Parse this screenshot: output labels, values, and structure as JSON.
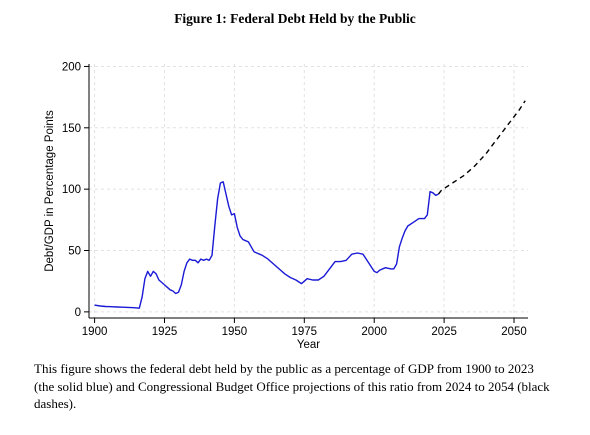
{
  "figure": {
    "title": "Figure 1: Federal Debt Held by the Public",
    "caption": "This figure shows the federal debt held by the public as a percentage of GDP from 1900 to 2023 (the solid blue) and Congressional Budget Office projections of this ratio from 2024 to 2054 (black dashes)."
  },
  "chart_data": {
    "type": "line",
    "title": "",
    "xlabel": "Year",
    "ylabel": "Debt/GDP in Percentage Points",
    "xlim": [
      1898,
      2055
    ],
    "ylim": [
      -5,
      202
    ],
    "xticks": [
      1900,
      1925,
      1950,
      1975,
      2000,
      2025,
      2050
    ],
    "yticks": [
      0,
      50,
      100,
      150,
      200
    ],
    "grid": true,
    "legend": "none",
    "colors": {
      "historical": "#1a1ad6",
      "projection": "#000000",
      "grid": "#e2e2e2"
    },
    "series": [
      {
        "style": "solid",
        "x": [
          1900,
          1902,
          1904,
          1906,
          1908,
          1910,
          1912,
          1914,
          1916,
          1917,
          1918,
          1919,
          1920,
          1921,
          1922,
          1923,
          1924,
          1925,
          1926,
          1927,
          1928,
          1929,
          1930,
          1931,
          1932,
          1933,
          1934,
          1935,
          1936,
          1937,
          1938,
          1939,
          1940,
          1941,
          1942,
          1943,
          1944,
          1945,
          1946,
          1947,
          1948,
          1949,
          1950,
          1951,
          1952,
          1953,
          1954,
          1955,
          1956,
          1957,
          1958,
          1959,
          1960,
          1962,
          1964,
          1966,
          1968,
          1970,
          1972,
          1974,
          1975,
          1976,
          1978,
          1980,
          1982,
          1984,
          1986,
          1988,
          1990,
          1992,
          1994,
          1996,
          1998,
          2000,
          2001,
          2002,
          2004,
          2006,
          2007,
          2008,
          2009,
          2010,
          2011,
          2012,
          2014,
          2016,
          2018,
          2019,
          2020,
          2021,
          2022,
          2023
        ],
        "y": [
          5.5,
          4.8,
          4.4,
          4.2,
          4.0,
          3.8,
          3.6,
          3.4,
          3.0,
          12,
          27,
          33,
          29,
          33,
          31,
          26,
          24,
          22,
          20,
          18,
          17,
          15,
          16,
          22,
          33,
          40,
          43,
          42,
          42,
          40,
          43,
          42,
          43,
          42,
          46,
          70,
          92,
          105,
          106,
          96,
          86,
          79,
          80,
          69,
          62,
          59,
          58,
          57,
          53,
          49,
          48,
          47,
          46,
          43,
          39,
          35,
          31,
          28,
          26,
          23,
          25,
          27,
          26,
          26,
          29,
          35,
          41,
          41,
          42,
          47,
          48,
          47,
          40,
          33,
          32,
          34,
          36,
          35,
          35,
          39,
          53,
          60,
          66,
          70,
          73,
          76,
          76,
          79,
          98,
          97,
          95,
          96
        ]
      },
      {
        "style": "dashed",
        "x": [
          2023,
          2024,
          2026,
          2028,
          2030,
          2032,
          2034,
          2036,
          2038,
          2040,
          2042,
          2044,
          2046,
          2048,
          2050,
          2052,
          2054
        ],
        "y": [
          96,
          99,
          102,
          105,
          108,
          111,
          115,
          119,
          124,
          129,
          135,
          141,
          147,
          153,
          159,
          165,
          172
        ]
      }
    ]
  }
}
